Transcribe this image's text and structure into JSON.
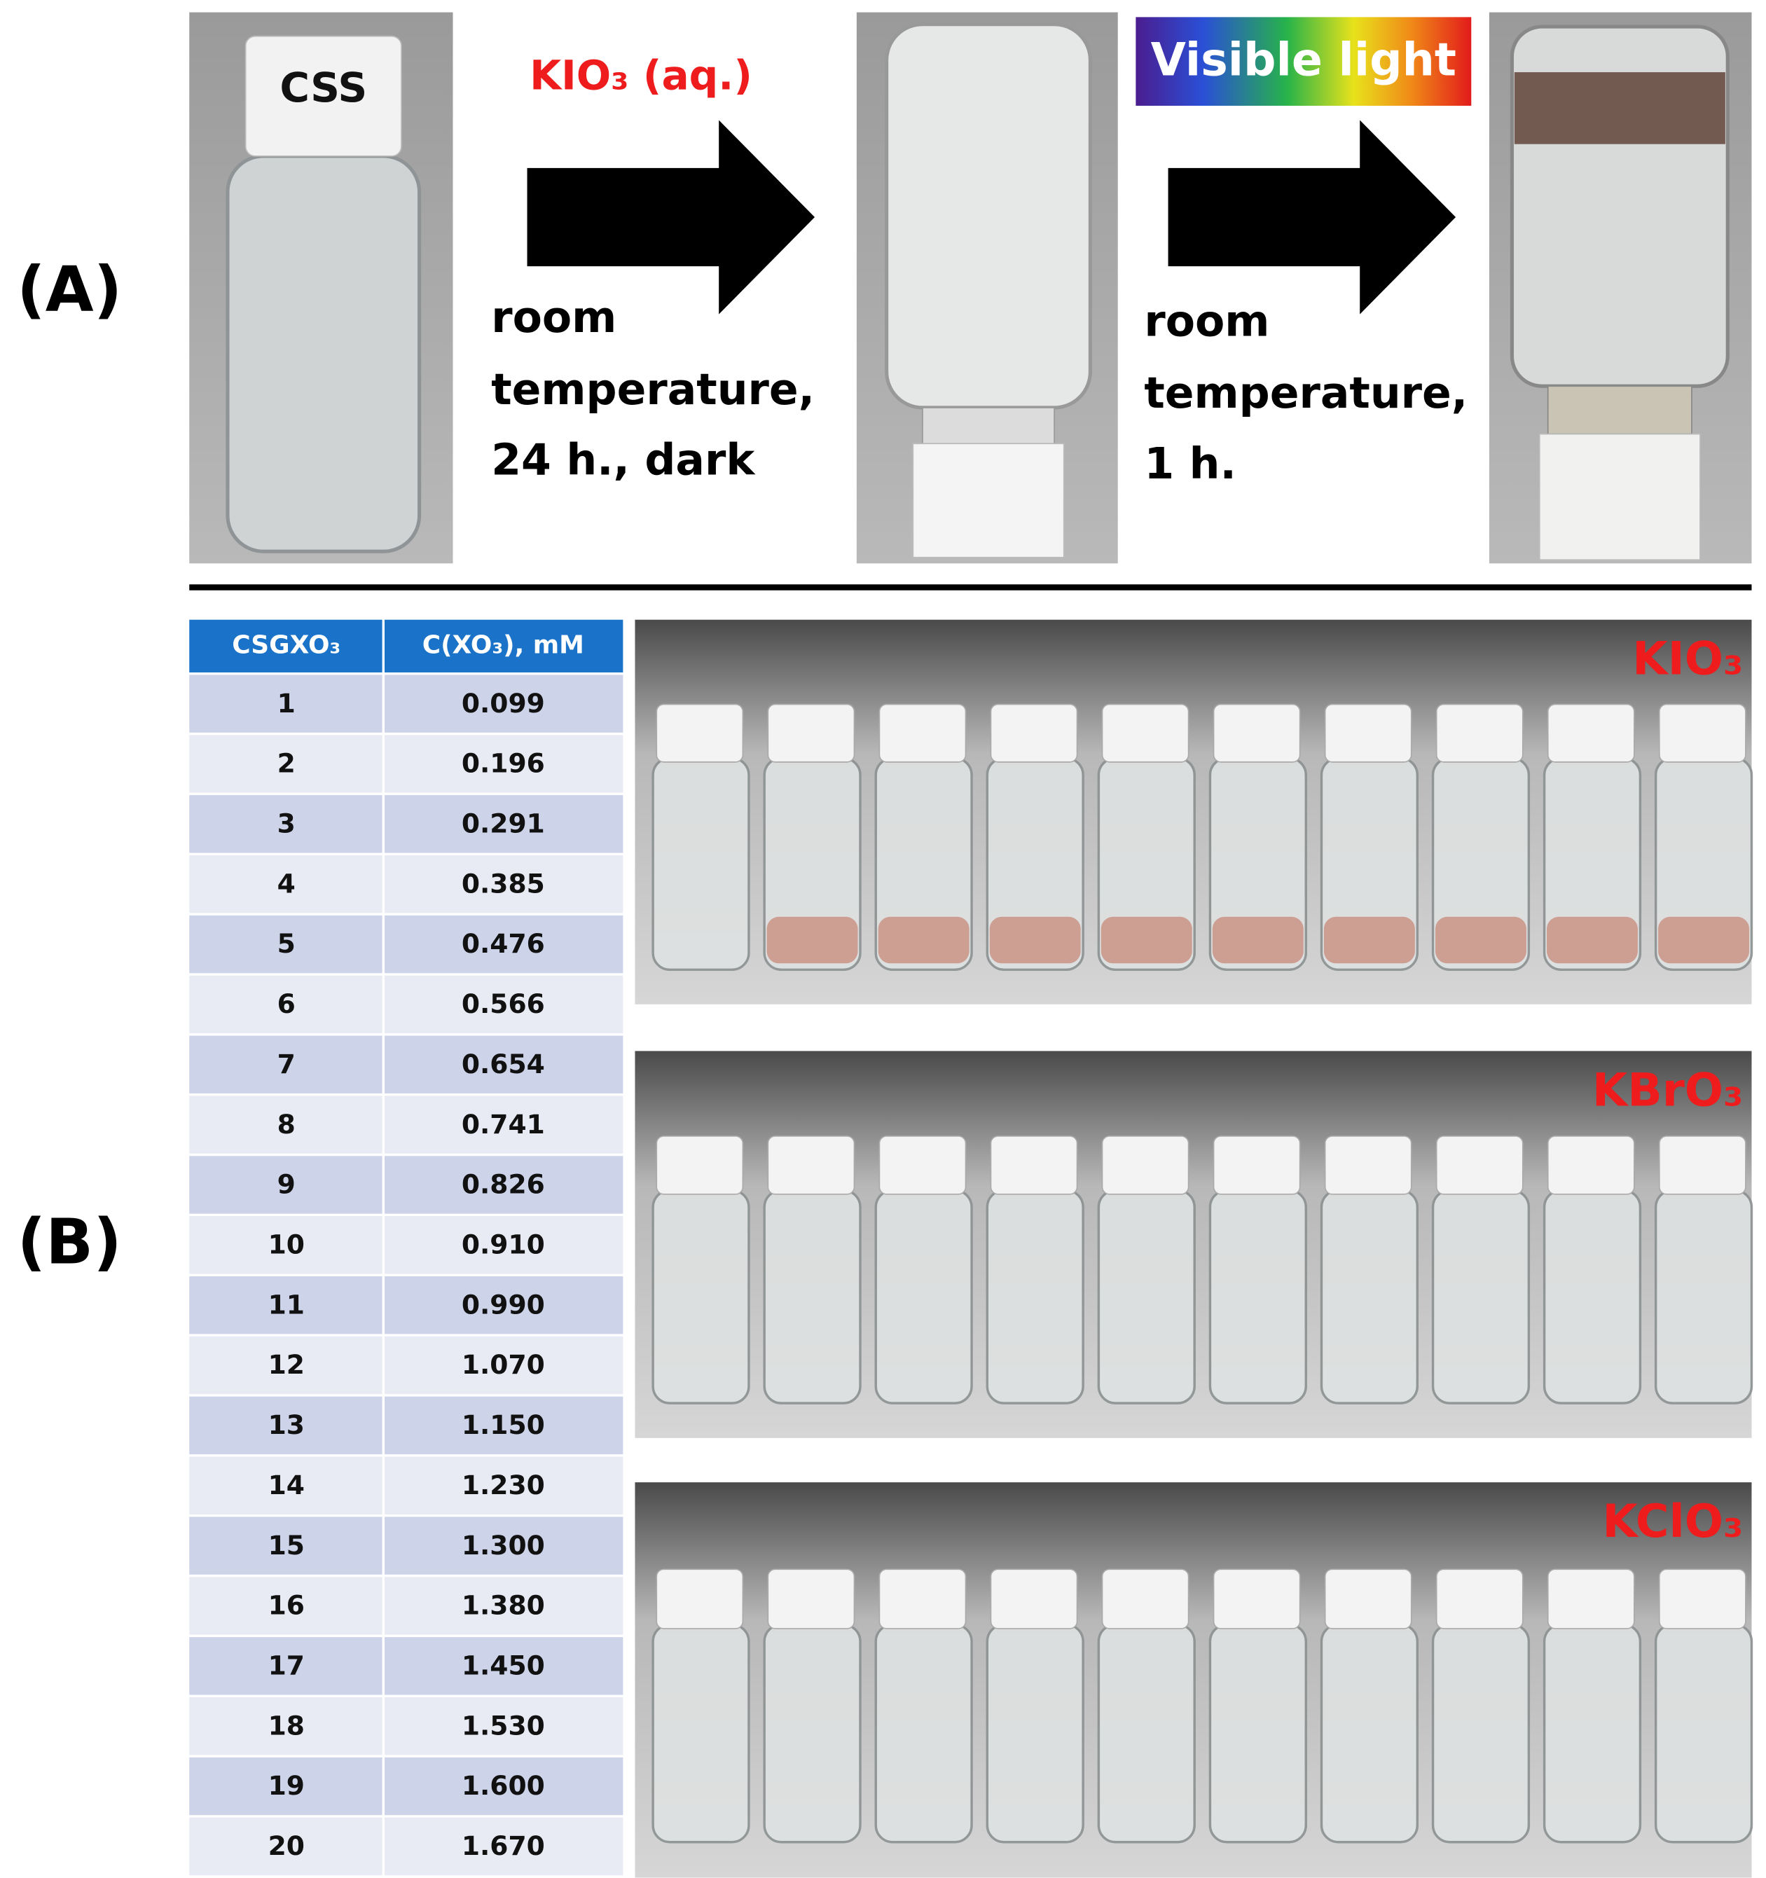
{
  "panel_a": {
    "label": "(A)",
    "cap_label": "CSS",
    "step1": {
      "reagent": "KIO₃ (aq.)",
      "conditions": [
        "room",
        "temperature,",
        "24 h., dark"
      ]
    },
    "step2": {
      "banner": "Visible light",
      "conditions": [
        "room",
        "temperature,",
        "1 h."
      ]
    }
  },
  "panel_b": {
    "label": "(B)",
    "table": {
      "header": [
        "CSGXO₃",
        "C(XO₃), mM"
      ],
      "rows": [
        [
          "1",
          "0.099"
        ],
        [
          "2",
          "0.196"
        ],
        [
          "3",
          "0.291"
        ],
        [
          "4",
          "0.385"
        ],
        [
          "5",
          "0.476"
        ],
        [
          "6",
          "0.566"
        ],
        [
          "7",
          "0.654"
        ],
        [
          "8",
          "0.741"
        ],
        [
          "9",
          "0.826"
        ],
        [
          "10",
          "0.910"
        ],
        [
          "11",
          "0.990"
        ],
        [
          "12",
          "1.070"
        ],
        [
          "13",
          "1.150"
        ],
        [
          "14",
          "1.230"
        ],
        [
          "15",
          "1.300"
        ],
        [
          "16",
          "1.380"
        ],
        [
          "17",
          "1.450"
        ],
        [
          "18",
          "1.530"
        ],
        [
          "19",
          "1.600"
        ],
        [
          "20",
          "1.670"
        ]
      ]
    },
    "photos": [
      "KIO₃",
      "KBrO₃",
      "KClO₃"
    ]
  }
}
